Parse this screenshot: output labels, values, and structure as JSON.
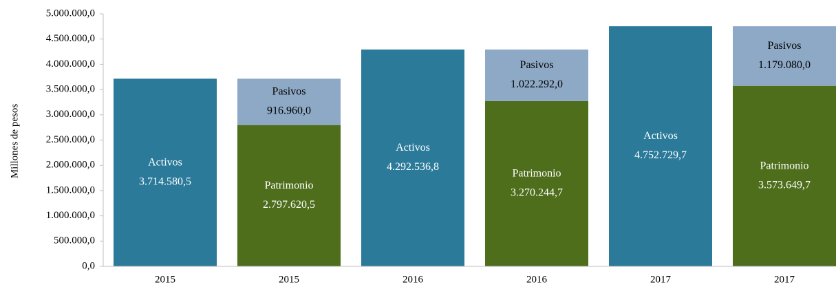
{
  "chart_data": {
    "type": "stacked_bar",
    "y_label": "Millones de pesos",
    "categories": [
      "2015",
      "2015",
      "2016",
      "2016",
      "2017",
      "2017"
    ],
    "series": [
      {
        "name": "Activos",
        "color": "#2b7a9a",
        "values": [
          3714580.5,
          null,
          4292536.8,
          null,
          4752729.7,
          null
        ],
        "value_labels": [
          "3.714.580,5",
          null,
          "4.292.536,8",
          null,
          "4.752.729,7",
          null
        ]
      },
      {
        "name": "Patrimonio",
        "color": "#4e6e1c",
        "values": [
          null,
          2797620.5,
          null,
          3270244.7,
          null,
          3573649.7
        ],
        "value_labels": [
          null,
          "2.797.620,5",
          null,
          "3.270.244,7",
          null,
          "3.573.649,7"
        ]
      },
      {
        "name": "Pasivos",
        "color": "#8ea9c5",
        "values": [
          null,
          916960.0,
          null,
          1022292.0,
          null,
          1179080.0
        ],
        "value_labels": [
          null,
          "916.960,0",
          null,
          "1.022.292,0",
          null,
          "1.179.080,0"
        ]
      }
    ],
    "ylim": [
      0,
      5000000
    ],
    "yticks": [
      {
        "value": 0,
        "label": "0,0"
      },
      {
        "value": 500000,
        "label": "500.000,0"
      },
      {
        "value": 1000000,
        "label": "1.000.000,0"
      },
      {
        "value": 1500000,
        "label": "1.500.000,0"
      },
      {
        "value": 2000000,
        "label": "2.000.000,0"
      },
      {
        "value": 2500000,
        "label": "2.500.000,0"
      },
      {
        "value": 3000000,
        "label": "3.000.000,0"
      },
      {
        "value": 3500000,
        "label": "3.500.000,0"
      },
      {
        "value": 4000000,
        "label": "4.000.000,0"
      },
      {
        "value": 4500000,
        "label": "4.500.000,0"
      },
      {
        "value": 5000000,
        "label": "5.000.000,0"
      }
    ],
    "grid": false
  }
}
